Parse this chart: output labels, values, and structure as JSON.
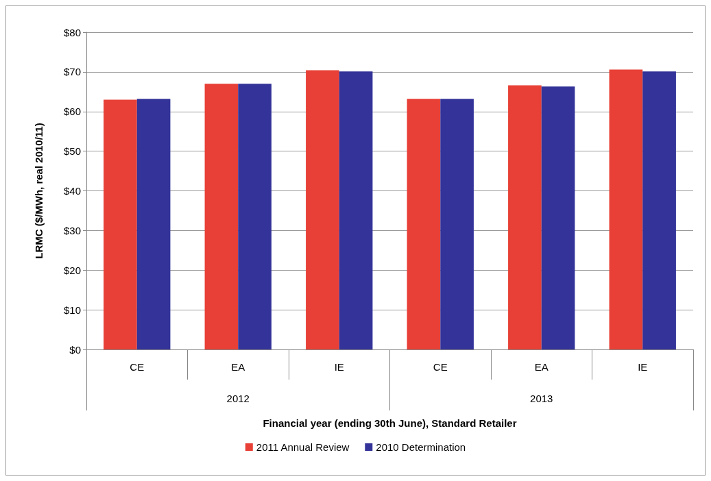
{
  "chart_data": {
    "type": "bar",
    "xlabel": "Financial year (ending 30th June), Standard Retailer",
    "ylabel": "LRMC ($/MWh, real 2010/11)",
    "categories": [
      "CE",
      "EA",
      "IE",
      "CE",
      "EA",
      "IE"
    ],
    "annotations": [
      "2012",
      "2013"
    ],
    "series": [
      {
        "name": "2011 Annual Review",
        "color": "#e84036",
        "values": [
          63.0,
          67.0,
          70.4,
          63.2,
          66.6,
          70.6
        ]
      },
      {
        "name": "2010 Determination",
        "color": "#333399",
        "values": [
          63.2,
          67.0,
          70.1,
          63.2,
          66.3,
          70.1
        ]
      }
    ],
    "ylim": [
      0,
      80
    ],
    "yticks": [
      {
        "value": 0,
        "label": "$0"
      },
      {
        "value": 10,
        "label": "$10"
      },
      {
        "value": 20,
        "label": "$20"
      },
      {
        "value": 30,
        "label": "$30"
      },
      {
        "value": 40,
        "label": "$40"
      },
      {
        "value": 50,
        "label": "$50"
      },
      {
        "value": 60,
        "label": "$60"
      },
      {
        "value": 70,
        "label": "$70"
      },
      {
        "value": 80,
        "label": "$80"
      }
    ],
    "grid": "y",
    "legend": "bottom"
  }
}
